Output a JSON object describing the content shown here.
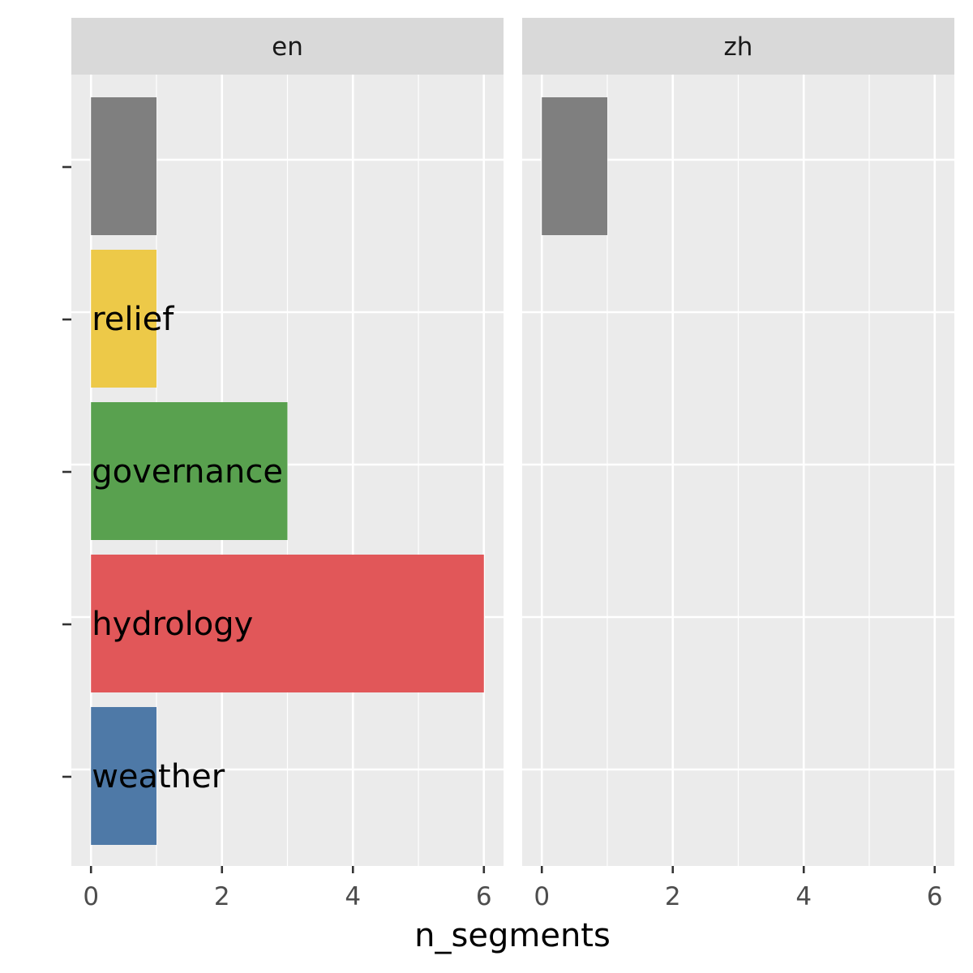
{
  "chart_data": {
    "type": "bar",
    "orientation": "horizontal",
    "xlabel": "n_segments",
    "ylabel": "",
    "xlim": [
      -0.3,
      6.3
    ],
    "x_ticks": [
      0,
      2,
      4,
      6
    ],
    "x_tick_labels": [
      "0",
      "2",
      "4",
      "6"
    ],
    "grid": true,
    "legend": "none",
    "categories": [
      "weather",
      "hydrology",
      "governance",
      "relief",
      ""
    ],
    "facets": [
      {
        "name": "en",
        "bars": [
          {
            "category": "",
            "label": "",
            "value": 1,
            "color": "#7f7f7f"
          },
          {
            "category": "relief",
            "label": "relief",
            "value": 1,
            "color": "#edc948"
          },
          {
            "category": "governance",
            "label": "governance",
            "value": 3,
            "color": "#59a14f"
          },
          {
            "category": "hydrology",
            "label": "hydrology",
            "value": 6,
            "color": "#e15759"
          },
          {
            "category": "weather",
            "label": "weather",
            "value": 1,
            "color": "#4e79a7"
          }
        ]
      },
      {
        "name": "zh",
        "bars": [
          {
            "category": "",
            "label": "",
            "value": 1,
            "color": "#7f7f7f"
          }
        ]
      }
    ]
  },
  "colors": {
    "panel_background": "#ebebeb",
    "strip_background": "#d9d9d9",
    "grid": "#ffffff",
    "tick": "#333333"
  }
}
